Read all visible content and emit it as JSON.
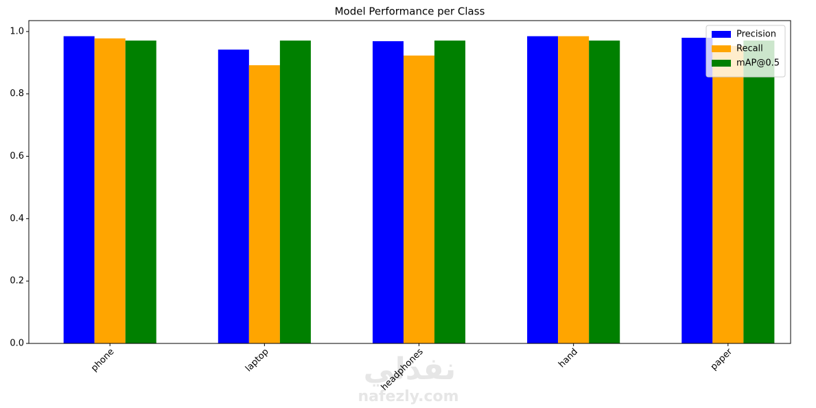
{
  "chart_data": {
    "type": "bar",
    "title": "Model Performance per Class",
    "categories": [
      "phone",
      "laptop",
      "headphones",
      "hand",
      "paper"
    ],
    "series": [
      {
        "name": "Precision",
        "color": "#0000ff",
        "values": [
          0.985,
          0.942,
          0.969,
          0.985,
          0.98
        ]
      },
      {
        "name": "Recall",
        "color": "#ffa500",
        "values": [
          0.978,
          0.892,
          0.923,
          0.985,
          0.954
        ]
      },
      {
        "name": "mAP@0.5",
        "color": "#008000",
        "values": [
          0.971,
          0.971,
          0.971,
          0.971,
          0.971
        ]
      }
    ],
    "ylim": [
      0,
      1.035
    ],
    "yticks": [
      {
        "value": 0,
        "label": "0.0"
      },
      0.2,
      0.4,
      0.6,
      0.8,
      {
        "value": 1,
        "label": "1.0"
      }
    ],
    "grid": false,
    "legend": "upper-right",
    "watermark": [
      "نفذلي",
      "nafezly.com"
    ]
  }
}
